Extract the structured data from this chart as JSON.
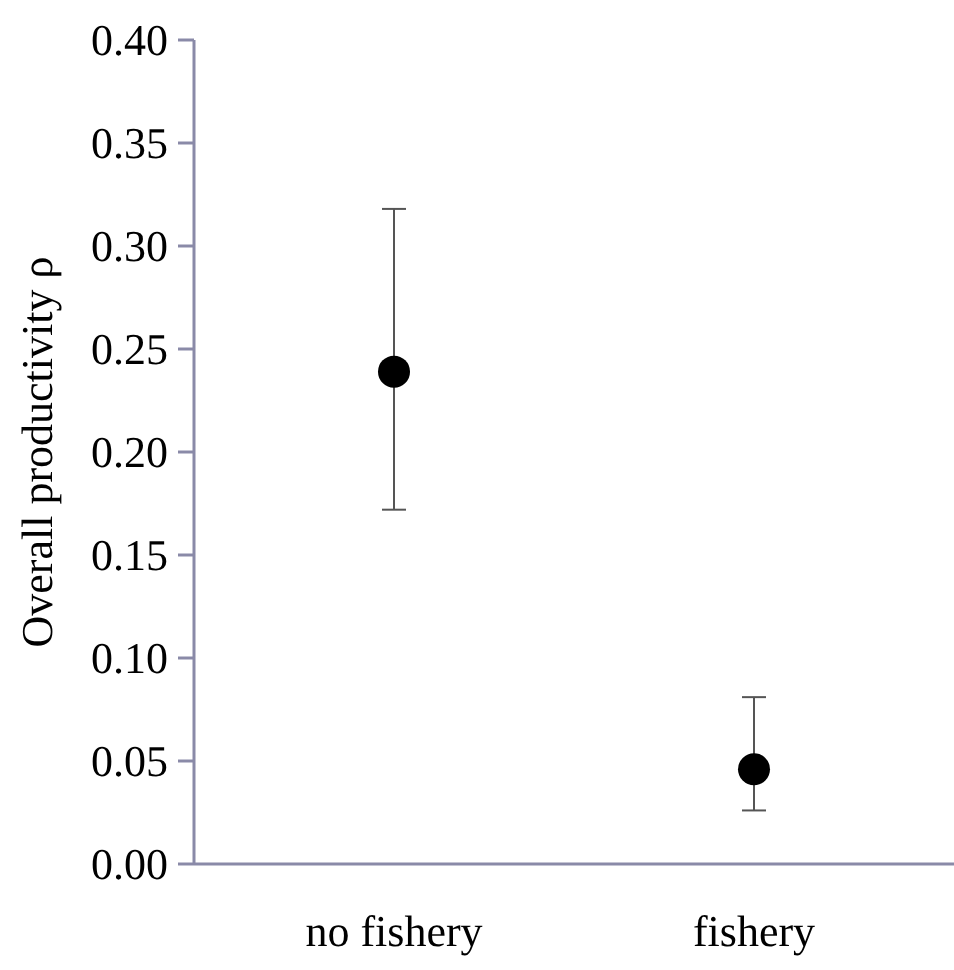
{
  "chart_data": {
    "type": "scatter",
    "ylabel": "Overall productivity ρ",
    "categories": [
      "no fishery",
      "fishery"
    ],
    "values": [
      0.239,
      0.046
    ],
    "errors": [
      [
        0.172,
        0.318
      ],
      [
        0.026,
        0.081
      ]
    ],
    "color": "#000000",
    "marker": "circle",
    "ylim": [
      0,
      0.4
    ],
    "yticks": [
      {
        "value": 0,
        "label": "0.00"
      },
      0.05,
      {
        "value": 0.1,
        "label": "0.10"
      },
      0.15,
      {
        "value": 0.2,
        "label": "0.20"
      },
      0.25,
      {
        "value": 0.3,
        "label": "0.30"
      },
      0.35,
      {
        "value": 0.4,
        "label": "0.40"
      }
    ],
    "grid": false
  }
}
